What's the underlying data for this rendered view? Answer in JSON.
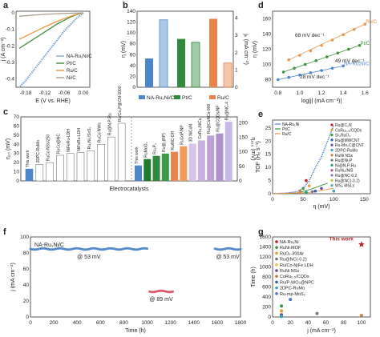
{
  "chart_data": [
    {
      "panel": "a",
      "type": "line",
      "xlabel": "E (V vs. RHE)",
      "ylabel": "j (A cm⁻²)",
      "xticks": [
        "-0.18",
        "-0.12",
        "-0.06",
        "0.00"
      ],
      "yticks": [
        "0",
        "-0.1",
        "-0.2",
        "-0.3",
        "-0.4"
      ],
      "xlim": [
        -0.21,
        0.02
      ],
      "ylim": [
        -0.45,
        0.01
      ],
      "series": [
        {
          "name": "NA-Ru₁Ni/C",
          "color": "#7fa6cf",
          "x": [
            0.0,
            -0.02,
            -0.04,
            -0.06,
            -0.08,
            -0.1,
            -0.12,
            -0.14,
            -0.16,
            -0.18,
            -0.2
          ],
          "y": [
            0,
            -0.03,
            -0.07,
            -0.11,
            -0.16,
            -0.21,
            -0.26,
            -0.31,
            -0.36,
            -0.41,
            -0.45
          ]
        },
        {
          "name": "Pt/C",
          "color": "#3e8f3e",
          "x": [
            0.0,
            -0.02,
            -0.04,
            -0.06,
            -0.08,
            -0.1,
            -0.12,
            -0.14,
            -0.16,
            -0.18,
            -0.2
          ],
          "y": [
            0,
            -0.01,
            -0.025,
            -0.045,
            -0.065,
            -0.09,
            -0.115,
            -0.14,
            -0.165,
            -0.19,
            -0.215
          ]
        },
        {
          "name": "Ru/C",
          "color": "#e89a3c",
          "x": [
            0.0,
            -0.02,
            -0.04,
            -0.06,
            -0.08,
            -0.1,
            -0.12,
            -0.14,
            -0.16,
            -0.18,
            -0.2
          ],
          "y": [
            0,
            -0.008,
            -0.02,
            -0.035,
            -0.05,
            -0.067,
            -0.085,
            -0.103,
            -0.122,
            -0.141,
            -0.16
          ]
        },
        {
          "name": "Ni/C",
          "color": "#a89a88",
          "x": [
            0.0,
            -0.04,
            -0.08,
            -0.12,
            -0.16,
            -0.2
          ],
          "y": [
            0,
            -0.002,
            -0.005,
            -0.009,
            -0.014,
            -0.02
          ]
        }
      ]
    },
    {
      "panel": "b",
      "type": "bar",
      "ylabel": "η (mV)",
      "y2label": "jₖ (mA cm⁻²)",
      "categories": [
        "NA-Ru₁Ni/C",
        "Pt/C",
        "Ru/C"
      ],
      "yticks": [
        "0",
        "20",
        "40",
        "60",
        "80",
        "100",
        "120",
        "140"
      ],
      "y2ticks": [
        "0",
        "1",
        "2",
        "3",
        "4"
      ],
      "eta": [
        53,
        89,
        126
      ],
      "jk": [
        3.9,
        2.6,
        1.4
      ],
      "colors": [
        "#4a86c8",
        "#2f8a3c",
        "#e8844a"
      ]
    },
    {
      "panel": "c",
      "type": "bar",
      "xlabel": "Electrocatalysts",
      "ylabel": "η₁₀ (mV)",
      "y2label": "η₁₀₀ (mV)",
      "left_labels": [
        "This work",
        "2DPC-RuMo",
        "RuCo NSs/250",
        "RuCo@NC",
        "NiFeRu-LDH",
        "NiFeRu-LDH",
        "Ru₂Ni₂/SnS₂",
        "RuCo NWs",
        "Ru@N,P-Ru",
        "Ru/Co₃P@CN-1000"
      ],
      "left_values": [
        13,
        18,
        20,
        28,
        30,
        31,
        33,
        40,
        48,
        63
      ],
      "right_labels": [
        "This work",
        "RuMoO₂",
        "Ru₂P₄",
        "Ru@₂(RP)",
        "Ru/NC-DH",
        "RuCoP/NP",
        "3D NiCoN",
        "CoRu₂NiCu",
        "Ru@CoNCs-900",
        "Ru@CQDs/NF",
        "Ru@NC-4"
      ],
      "right_values": [
        53,
        75,
        86,
        94,
        100,
        119,
        128,
        139,
        156,
        163,
        203
      ],
      "left_yticks": [
        "0",
        "10",
        "20",
        "30",
        "40",
        "50",
        "60",
        "70"
      ],
      "right_yticks": [
        "0",
        "50",
        "100",
        "150",
        "200"
      ]
    },
    {
      "panel": "d",
      "type": "scatter",
      "xlabel": "log|j| (mA cm⁻²)|",
      "ylabel": "η (mV)",
      "xticks": [
        "0.8",
        "1.0",
        "1.2",
        "1.4",
        "1.6"
      ],
      "yticks": [
        "80",
        "100",
        "120",
        "140",
        "160"
      ],
      "xlim": [
        0.75,
        1.65
      ],
      "ylim": [
        70,
        170
      ],
      "annotations": [
        "68 mV dec⁻¹",
        "49 mV dec⁻¹",
        "28 mV dec⁻¹"
      ],
      "series": [
        {
          "name": "Ru/C",
          "color": "#e8944a",
          "x": [
            0.9,
            1.0,
            1.1,
            1.2,
            1.3,
            1.4,
            1.5,
            1.6
          ],
          "y": [
            106,
            112,
            118,
            125,
            132,
            139,
            146,
            153
          ]
        },
        {
          "name": "Pt/C",
          "color": "#3e8f3e",
          "x": [
            0.85,
            0.95,
            1.05,
            1.15,
            1.25,
            1.35,
            1.45,
            1.55
          ],
          "y": [
            90,
            95,
            100,
            105,
            110,
            115,
            120,
            125
          ]
        },
        {
          "name": "NA-Ru₁Ni/C",
          "color": "#4a86c8",
          "x": [
            0.8,
            0.9,
            1.0,
            1.1,
            1.2,
            1.3,
            1.4
          ],
          "y": [
            80,
            83,
            86,
            89,
            92,
            95,
            98
          ]
        }
      ]
    },
    {
      "panel": "e",
      "type": "scatter",
      "xlabel": "η (mV)",
      "ylabel": "TOF (H₂ s⁻¹)",
      "xticks": [
        "0",
        "50",
        "100",
        "150"
      ],
      "yticks": [
        "0",
        "5",
        "10",
        "15",
        "20",
        "25"
      ],
      "xlim": [
        0,
        160
      ],
      "ylim": [
        0,
        28
      ],
      "legend": [
        "NA-Ru₁Ni",
        "Pt/C",
        "Ru/C"
      ],
      "markers_legend": [
        "Ru@C₂N",
        "CoRu₀.₅/CQDs",
        "Sr₂RuO₄",
        "Ru@MWCNT",
        "Ru-Mo₂C@CNT",
        "2DPC-RuMo",
        "RuNi NSs",
        "Ru@Ni₂P",
        "Ni@N,P-Ru",
        "RuNi₂/NiS",
        "Ru@NC-0.2",
        "Ru@NC(-0.2)",
        "WS₂ MSLs"
      ],
      "curve_x": [
        0,
        20,
        40,
        50,
        60,
        70,
        80,
        90,
        100
      ],
      "curve_y": [
        0,
        0.2,
        0.8,
        2,
        5,
        10,
        14,
        20,
        26
      ]
    },
    {
      "panel": "f",
      "type": "scatter",
      "xlabel": "Time (h)",
      "ylabel": "j (mA cm⁻²)",
      "label": "NA-Ru₁Ni/C",
      "xticks": [
        "0",
        "200",
        "400",
        "600",
        "800",
        "1000",
        "1200",
        "1400",
        "1600",
        "1800"
      ],
      "yticks": [
        "0",
        "20",
        "40",
        "60",
        "80",
        "100"
      ],
      "xlim": [
        0,
        1800
      ],
      "ylim": [
        0,
        100
      ],
      "annotations": [
        "@ 53 mV",
        "@ 89 mV",
        "@ 53 mV"
      ],
      "segments": [
        {
          "x_start": 0,
          "x_end": 1000,
          "y": 85,
          "color": "#4a86c8"
        },
        {
          "x_start": 1020,
          "x_end": 1220,
          "y": 32,
          "color": "#d9546a"
        },
        {
          "x_start": 1580,
          "x_end": 1800,
          "y": 85,
          "color": "#4a86c8"
        }
      ]
    },
    {
      "panel": "g",
      "type": "scatter",
      "xlabel": "j (mA cm⁻²)",
      "ylabel": "Time (h)",
      "xticks": [
        "0",
        "20",
        "40",
        "60",
        "80",
        "100"
      ],
      "yticks": [
        "0",
        "200",
        "400",
        "600",
        "800",
        "1000",
        "1200",
        "1400",
        "1600"
      ],
      "xlim": [
        0,
        110
      ],
      "ylim": [
        0,
        1600
      ],
      "this_work_label": "This work",
      "legend": [
        "NA-Ru₁Ni",
        "RuNi-MOF",
        "RuO₂-300Ar",
        "Ru@NC(-0.2)",
        "Ru/Co-NiFe LDH",
        "RuNi NSs",
        "CoRu₀.₅/CQDs",
        "Ru/P-WO₃@NPC",
        "2DPC-RuMo",
        "Ru-mp-MoS₂"
      ],
      "points": [
        {
          "x": 100,
          "y": 1450,
          "color": "#c0202a",
          "shape": "star"
        },
        {
          "x": 10,
          "y": 220,
          "color": "#3a9a3a",
          "shape": "circle"
        },
        {
          "x": 10,
          "y": 120,
          "color": "#e0a030",
          "shape": "circle"
        },
        {
          "x": 50,
          "y": 70,
          "color": "#777777",
          "shape": "circle"
        },
        {
          "x": 10,
          "y": 50,
          "color": "#f0c040",
          "shape": "circle"
        },
        {
          "x": 10,
          "y": 40,
          "color": "#6a4aa0",
          "shape": "circle"
        },
        {
          "x": 100,
          "y": 30,
          "color": "#c08040",
          "shape": "circle"
        },
        {
          "x": 10,
          "y": 20,
          "color": "#3060b0",
          "shape": "circle"
        },
        {
          "x": 10,
          "y": 10,
          "color": "#40a0c0",
          "shape": "circle"
        },
        {
          "x": 20,
          "y": 350,
          "color": "#5070c0",
          "shape": "circle"
        }
      ]
    }
  ]
}
